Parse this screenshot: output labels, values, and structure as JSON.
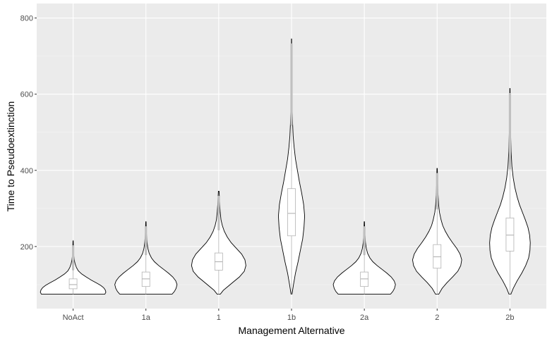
{
  "chart_data": {
    "type": "violin",
    "title": "",
    "xlabel": "Management Alternative",
    "ylabel": "Time to Pseudoextinction",
    "categories": [
      "NoAct",
      "1a",
      "1",
      "1b",
      "2a",
      "2",
      "2b"
    ],
    "y_ticks": [
      200,
      400,
      600,
      800
    ],
    "ylim": [
      37,
      838
    ],
    "grid": true,
    "legend": "none",
    "colors": {
      "panel": "#ebebeb",
      "grid_major": "#ffffff",
      "grid_minor": "#f5f5f5",
      "violin_fill": "#ffffff",
      "violin_outline": "#000000",
      "box_outline": "#b3b3b3",
      "outlier": "#c0c0c0"
    },
    "series": [
      {
        "category": "NoAct",
        "min": 75,
        "max": 215,
        "box": {
          "q1": 89,
          "median": 100,
          "q3": 115
        },
        "whisker_high": 140,
        "outlier_max": 215,
        "density": [
          [
            75,
            0.97
          ],
          [
            80,
            1.0
          ],
          [
            86,
            0.98
          ],
          [
            92,
            0.93
          ],
          [
            98,
            0.84
          ],
          [
            105,
            0.7
          ],
          [
            112,
            0.55
          ],
          [
            120,
            0.4
          ],
          [
            128,
            0.26
          ],
          [
            136,
            0.16
          ],
          [
            145,
            0.1
          ],
          [
            155,
            0.06
          ],
          [
            165,
            0.035
          ],
          [
            175,
            0.022
          ],
          [
            190,
            0.013
          ],
          [
            200,
            0.009
          ],
          [
            215,
            0.004
          ]
        ]
      },
      {
        "category": "1a",
        "min": 75,
        "max": 265,
        "box": {
          "q1": 95,
          "median": 115,
          "q3": 133
        },
        "whisker_high": 180,
        "outlier_max": 265,
        "density": [
          [
            75,
            0.8
          ],
          [
            82,
            0.87
          ],
          [
            90,
            0.92
          ],
          [
            100,
            0.95
          ],
          [
            110,
            0.91
          ],
          [
            120,
            0.82
          ],
          [
            130,
            0.69
          ],
          [
            140,
            0.54
          ],
          [
            150,
            0.39
          ],
          [
            160,
            0.26
          ],
          [
            170,
            0.17
          ],
          [
            182,
            0.1
          ],
          [
            195,
            0.06
          ],
          [
            210,
            0.035
          ],
          [
            230,
            0.02
          ],
          [
            250,
            0.01
          ],
          [
            265,
            0.005
          ]
        ]
      },
      {
        "category": "1",
        "min": 75,
        "max": 345,
        "box": {
          "q1": 138,
          "median": 160,
          "q3": 183
        },
        "whisker_high": 245,
        "outlier_max": 345,
        "density": [
          [
            75,
            0.05
          ],
          [
            85,
            0.14
          ],
          [
            95,
            0.28
          ],
          [
            108,
            0.46
          ],
          [
            120,
            0.63
          ],
          [
            135,
            0.78
          ],
          [
            150,
            0.83
          ],
          [
            165,
            0.8
          ],
          [
            180,
            0.7
          ],
          [
            195,
            0.54
          ],
          [
            210,
            0.38
          ],
          [
            225,
            0.26
          ],
          [
            240,
            0.17
          ],
          [
            255,
            0.11
          ],
          [
            270,
            0.07
          ],
          [
            290,
            0.045
          ],
          [
            310,
            0.03
          ],
          [
            330,
            0.02
          ],
          [
            345,
            0.01
          ]
        ]
      },
      {
        "category": "1b",
        "min": 75,
        "max": 745,
        "box": {
          "q1": 228,
          "median": 287,
          "q3": 352
        },
        "whisker_high": 520,
        "outlier_max": 745,
        "density": [
          [
            75,
            0.015
          ],
          [
            100,
            0.06
          ],
          [
            130,
            0.12
          ],
          [
            160,
            0.2
          ],
          [
            190,
            0.27
          ],
          [
            220,
            0.34
          ],
          [
            250,
            0.38
          ],
          [
            280,
            0.4
          ],
          [
            310,
            0.37
          ],
          [
            340,
            0.31
          ],
          [
            370,
            0.24
          ],
          [
            400,
            0.18
          ],
          [
            430,
            0.12
          ],
          [
            460,
            0.08
          ],
          [
            490,
            0.05
          ],
          [
            520,
            0.035
          ],
          [
            560,
            0.02
          ],
          [
            600,
            0.015
          ],
          [
            650,
            0.01
          ],
          [
            700,
            0.006
          ],
          [
            745,
            0.003
          ]
        ]
      },
      {
        "category": "2a",
        "min": 75,
        "max": 265,
        "box": {
          "q1": 95,
          "median": 115,
          "q3": 133
        },
        "whisker_high": 180,
        "outlier_max": 265,
        "density": [
          [
            75,
            0.8
          ],
          [
            82,
            0.87
          ],
          [
            90,
            0.92
          ],
          [
            100,
            0.95
          ],
          [
            110,
            0.91
          ],
          [
            120,
            0.82
          ],
          [
            130,
            0.69
          ],
          [
            140,
            0.54
          ],
          [
            150,
            0.39
          ],
          [
            160,
            0.26
          ],
          [
            170,
            0.17
          ],
          [
            182,
            0.1
          ],
          [
            195,
            0.06
          ],
          [
            210,
            0.035
          ],
          [
            230,
            0.02
          ],
          [
            250,
            0.01
          ],
          [
            265,
            0.005
          ]
        ]
      },
      {
        "category": "2",
        "min": 75,
        "max": 405,
        "box": {
          "q1": 143,
          "median": 173,
          "q3": 205
        },
        "whisker_high": 300,
        "outlier_max": 405,
        "density": [
          [
            75,
            0.05
          ],
          [
            90,
            0.15
          ],
          [
            105,
            0.3
          ],
          [
            120,
            0.47
          ],
          [
            135,
            0.63
          ],
          [
            150,
            0.72
          ],
          [
            165,
            0.75
          ],
          [
            180,
            0.7
          ],
          [
            195,
            0.6
          ],
          [
            210,
            0.47
          ],
          [
            225,
            0.35
          ],
          [
            240,
            0.25
          ],
          [
            255,
            0.17
          ],
          [
            270,
            0.12
          ],
          [
            290,
            0.07
          ],
          [
            310,
            0.045
          ],
          [
            340,
            0.025
          ],
          [
            370,
            0.015
          ],
          [
            405,
            0.006
          ]
        ]
      },
      {
        "category": "2b",
        "min": 75,
        "max": 615,
        "box": {
          "q1": 188,
          "median": 230,
          "q3": 275
        },
        "whisker_high": 405,
        "outlier_max": 615,
        "density": [
          [
            75,
            0.03
          ],
          [
            90,
            0.1
          ],
          [
            110,
            0.22
          ],
          [
            130,
            0.36
          ],
          [
            150,
            0.48
          ],
          [
            170,
            0.57
          ],
          [
            190,
            0.61
          ],
          [
            210,
            0.62
          ],
          [
            230,
            0.6
          ],
          [
            250,
            0.55
          ],
          [
            270,
            0.47
          ],
          [
            290,
            0.38
          ],
          [
            310,
            0.29
          ],
          [
            330,
            0.22
          ],
          [
            355,
            0.15
          ],
          [
            380,
            0.1
          ],
          [
            410,
            0.06
          ],
          [
            450,
            0.035
          ],
          [
            500,
            0.02
          ],
          [
            560,
            0.01
          ],
          [
            615,
            0.004
          ]
        ]
      }
    ]
  }
}
